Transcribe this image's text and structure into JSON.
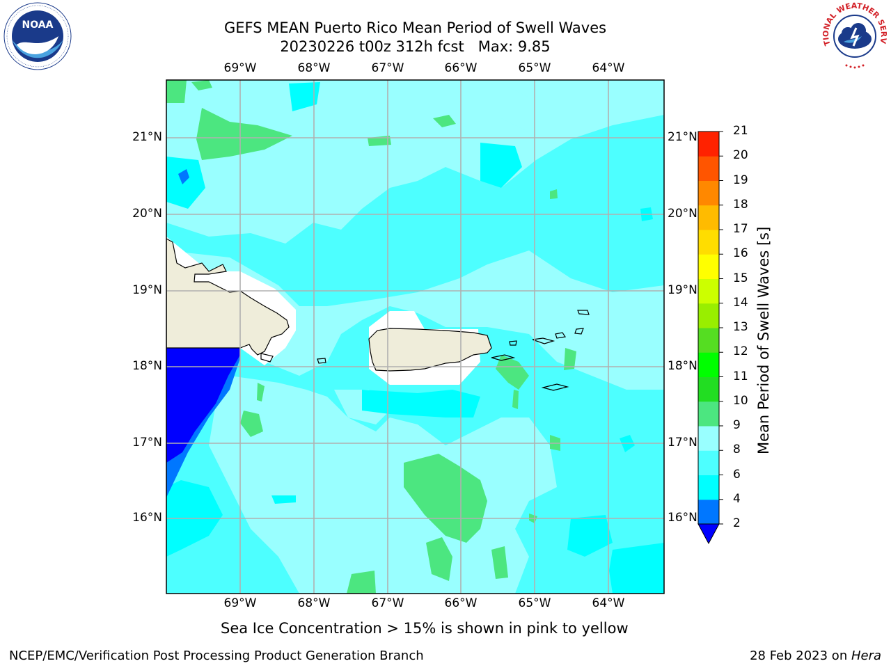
{
  "header": {
    "title_line1": "GEFS MEAN Puerto Rico Mean Period of Swell Waves",
    "title_line2": "20230226 t00z 312h fcst   Max: 9.85"
  },
  "logos": {
    "left": {
      "name": "NOAA",
      "ring_text": "NATIONAL OCEANIC AND ATMOSPHERIC ADMINISTRATION · U.S. DEPARTMENT OF COMMERCE",
      "color": "#1a3a8a"
    },
    "right": {
      "name": "NATIONAL WEATHER SERVICE",
      "color": "#d21f26"
    }
  },
  "map": {
    "lon_labels": [
      "69°W",
      "68°W",
      "67°W",
      "66°W",
      "65°W",
      "64°W"
    ],
    "lat_labels": [
      "21°N",
      "20°N",
      "19°N",
      "18°N",
      "17°N",
      "16°N"
    ],
    "land_color": "#efedda",
    "grid": true
  },
  "colorbar": {
    "title": "Mean Period of Swell Waves [s]",
    "ticks": [
      "2",
      "4",
      "6",
      "8",
      "9",
      "10",
      "11",
      "12",
      "13",
      "14",
      "15",
      "16",
      "17",
      "18",
      "19",
      "20",
      "21"
    ],
    "colors": [
      "#0000ff",
      "#0077ff",
      "#00ffff",
      "#4dffff",
      "#99ffff",
      "#4ce680",
      "#22dd22",
      "#00ff00",
      "#55dd22",
      "#99ee00",
      "#ccff00",
      "#ffff00",
      "#ffdd00",
      "#ffbb00",
      "#ff8800",
      "#ff5500",
      "#ff2200",
      "#ff0000"
    ],
    "extend": "min"
  },
  "note": "Sea Ice Concentration > 15% is shown in pink to yellow",
  "footer": {
    "left": "NCEP/EMC/Verification Post Processing Product Generation Branch",
    "right_prefix": "28 Feb 2023 on ",
    "right_italic": "Hera"
  }
}
